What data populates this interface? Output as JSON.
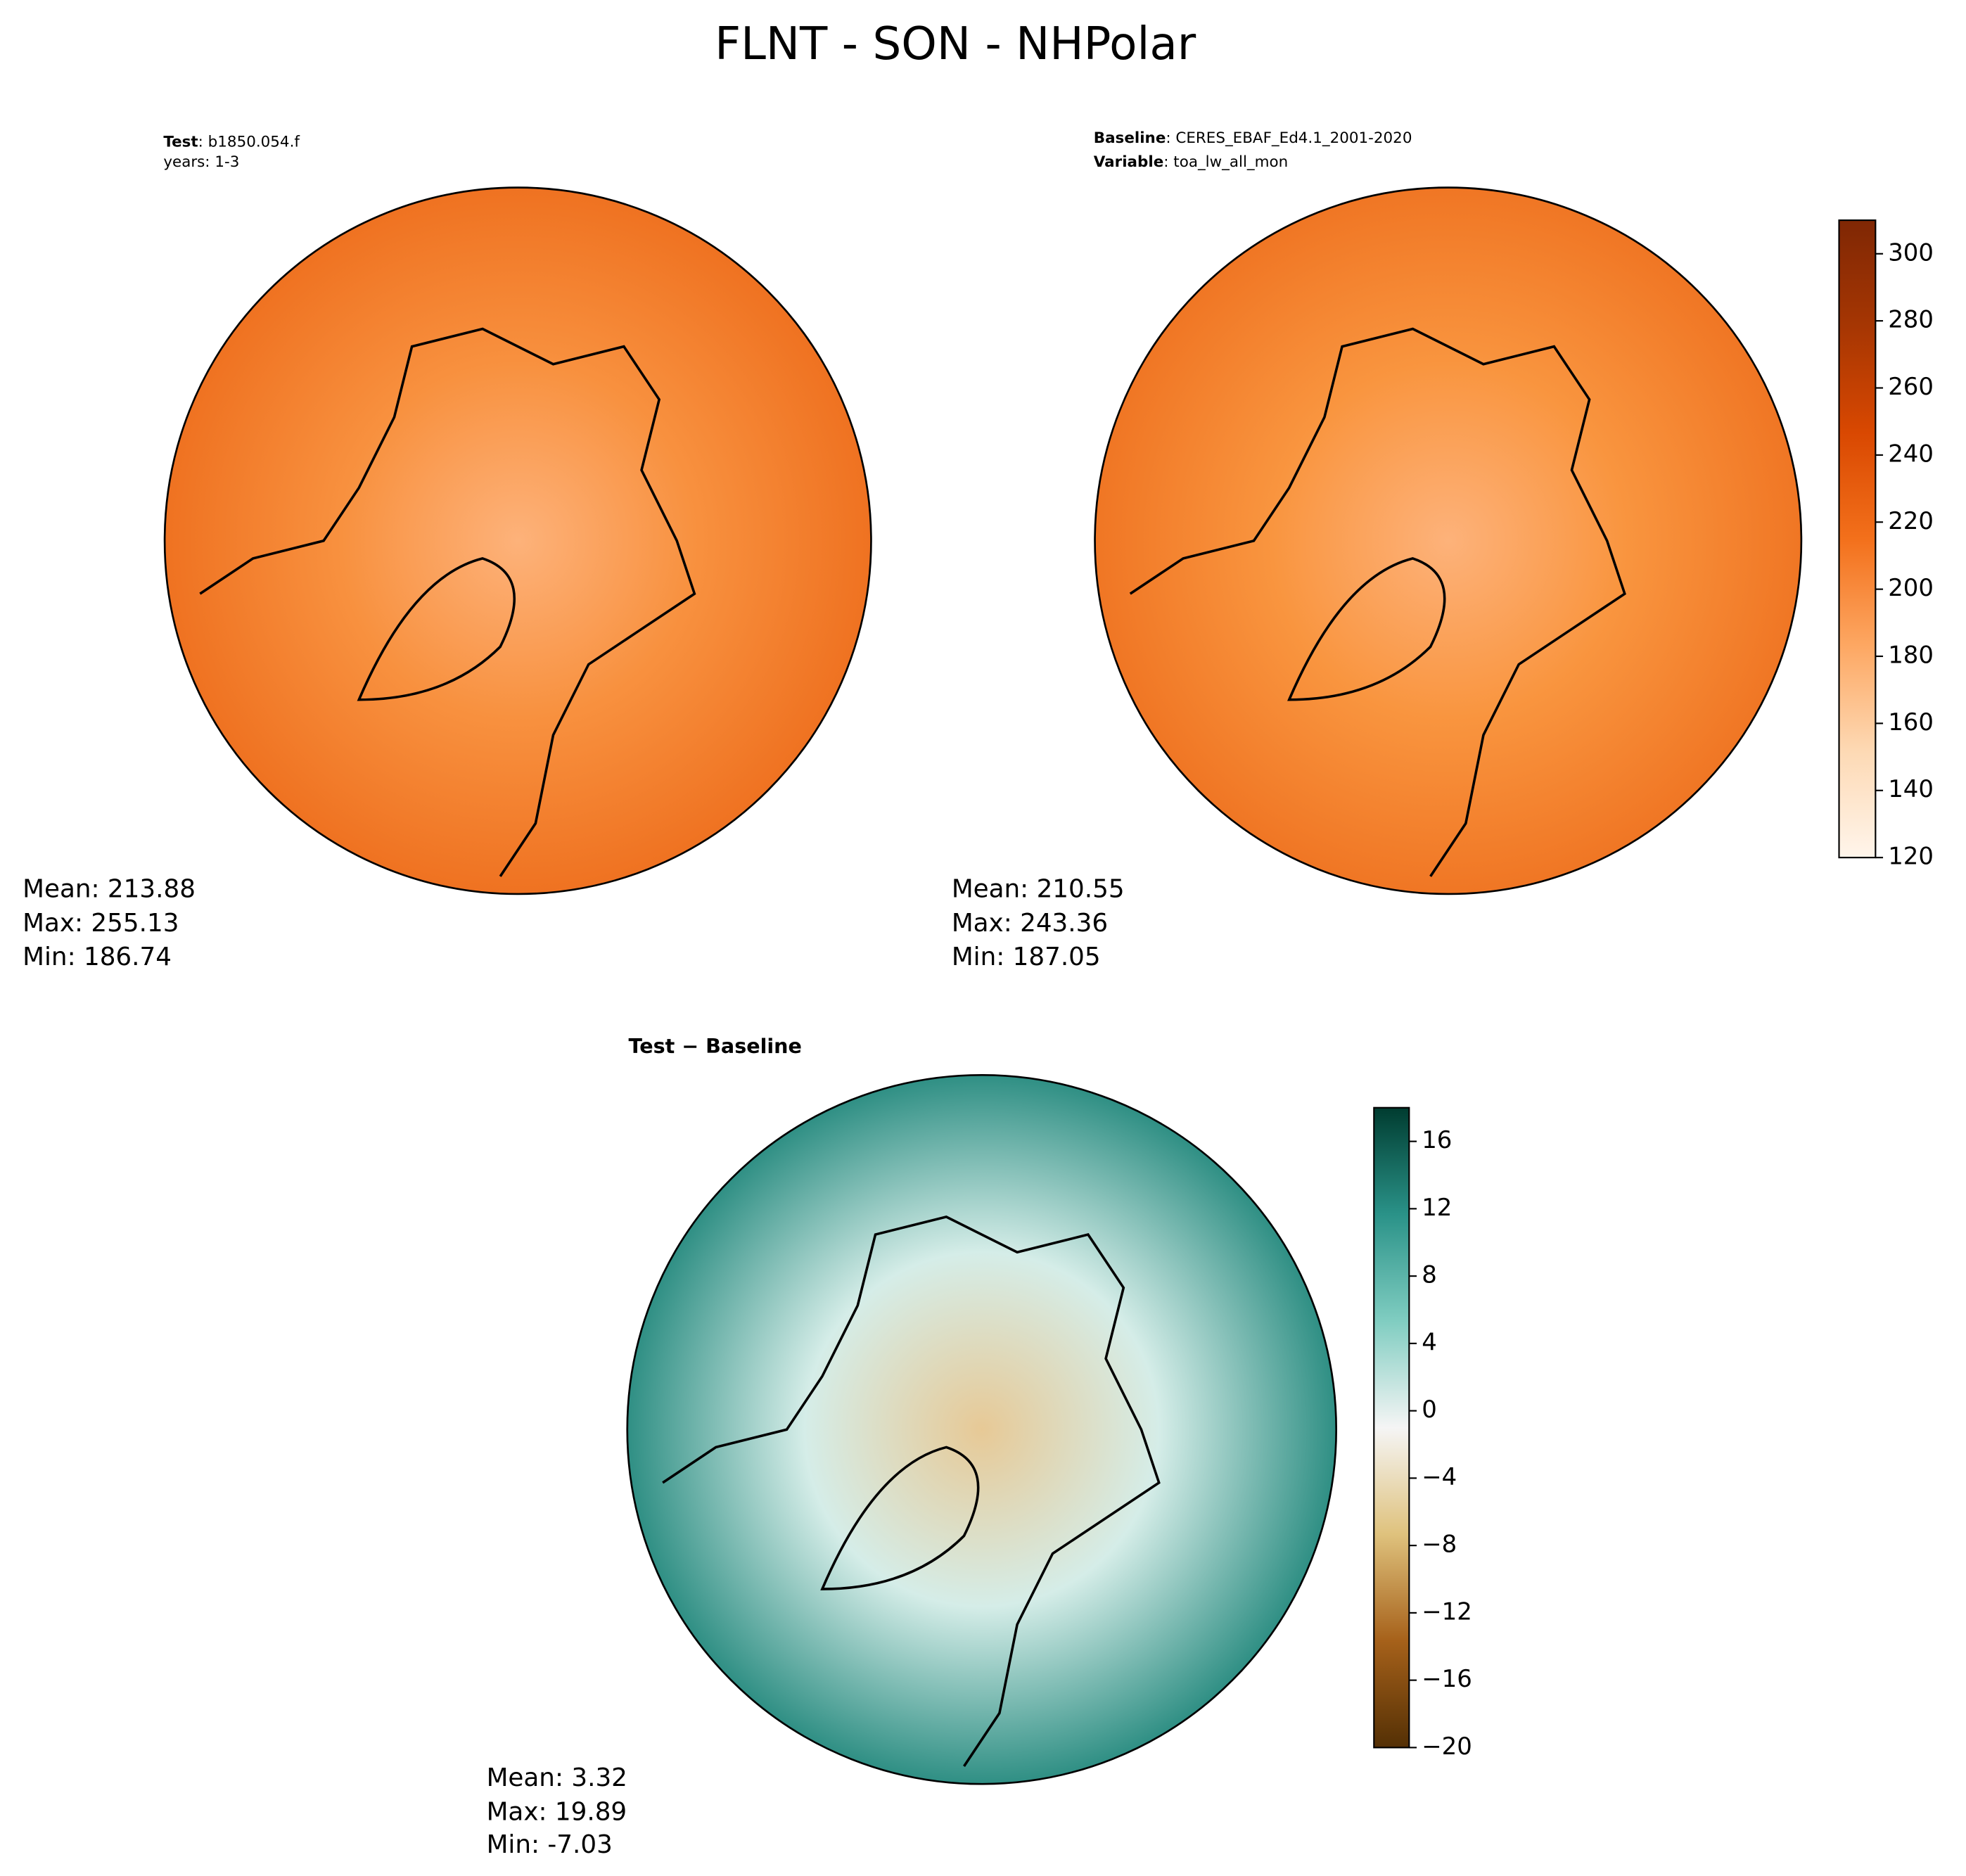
{
  "title": "FLNT - SON - NHPolar",
  "panels": [
    {
      "header": [
        {
          "label": "Test",
          "value": ": b1850.054.f"
        },
        {
          "label": "",
          "value": "years: 1-3"
        }
      ],
      "stats": [
        "Mean: 213.88",
        "Max: 255.13",
        "Min: 186.74"
      ],
      "fill": [
        "#fdb27a",
        "#f8913f",
        "#ef7221"
      ]
    },
    {
      "header": [
        {
          "label": "Baseline",
          "value": ": CERES_EBAF_Ed4.1_2001-2020"
        },
        {
          "label": "Variable",
          "value": ": toa_lw_all_mon"
        }
      ],
      "stats": [
        "Mean: 210.55",
        "Max: 243.36",
        "Min: 187.05"
      ],
      "fill": [
        "#fdb27a",
        "#f9953f",
        "#f07624"
      ]
    },
    {
      "header": [
        {
          "label": "Test − Baseline",
          "value": ""
        }
      ],
      "stats": [
        "Mean:  3.32",
        "Max: 19.89",
        "Min: -7.03"
      ],
      "fill": [
        "#e7c996",
        "#d5ede8",
        "#2f8f84"
      ]
    }
  ],
  "colorbars": [
    {
      "lim": [
        120,
        310
      ],
      "ticks": [
        120,
        140,
        160,
        180,
        200,
        220,
        240,
        260,
        280,
        300
      ],
      "colormap": [
        "#fff5eb",
        "#fdd9b4",
        "#fda762",
        "#f3701b",
        "#d94801",
        "#a63603",
        "#7f2704"
      ]
    },
    {
      "lim": [
        -20,
        18
      ],
      "ticks": [
        {
          "value": -20,
          "label": "−20"
        },
        {
          "value": -16,
          "label": "−16"
        },
        {
          "value": -12,
          "label": "−12"
        },
        {
          "value": -8,
          "label": "−8"
        },
        {
          "value": -4,
          "label": "−4"
        },
        0,
        4,
        8,
        12,
        16
      ],
      "colormap": [
        "#543005",
        "#a6611a",
        "#dfc27d",
        "#f5f5f5",
        "#80cdc1",
        "#2a9288",
        "#003c30"
      ]
    }
  ]
}
